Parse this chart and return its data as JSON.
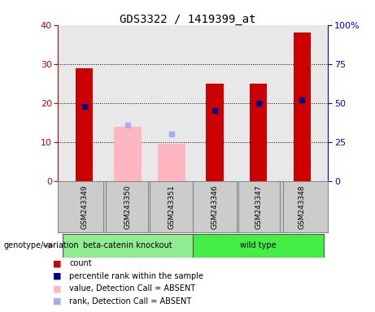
{
  "title": "GDS3322 / 1419399_at",
  "samples": [
    "GSM243349",
    "GSM243350",
    "GSM243351",
    "GSM243346",
    "GSM243347",
    "GSM243348"
  ],
  "red_counts": [
    29,
    0,
    0,
    25,
    25,
    38
  ],
  "pink_values": [
    0,
    14,
    9.5,
    0,
    0,
    0
  ],
  "blue_ranks_present_pct": [
    48,
    0,
    0,
    45,
    50,
    52
  ],
  "blue_ranks_absent_pct": [
    0,
    36,
    30,
    0,
    0,
    0
  ],
  "absent_flags": [
    false,
    true,
    true,
    false,
    false,
    false
  ],
  "ylim_left": [
    0,
    40
  ],
  "ylim_right": [
    0,
    100
  ],
  "yticks_left": [
    0,
    10,
    20,
    30,
    40
  ],
  "yticks_right": [
    0,
    25,
    50,
    75,
    100
  ],
  "ytick_labels_right": [
    "0",
    "25",
    "50",
    "75",
    "100%"
  ],
  "bar_width": 0.4,
  "red_color": "#CC0000",
  "pink_color": "#FFB6C1",
  "blue_present_color": "#00008B",
  "blue_absent_color": "#AAAAEE",
  "axis_bg_color": "#E8E8E8",
  "label_bg_color": "#CCCCCC",
  "group1_color": "#90EE90",
  "group2_color": "#44EE44",
  "genotype_label": "genotype/variation",
  "group1_label": "beta-catenin knockout",
  "group2_label": "wild type",
  "legend_colors": [
    "#CC0000",
    "#00008B",
    "#FFB6C1",
    "#AAAAEE"
  ],
  "legend_labels": [
    "count",
    "percentile rank within the sample",
    "value, Detection Call = ABSENT",
    "rank, Detection Call = ABSENT"
  ]
}
